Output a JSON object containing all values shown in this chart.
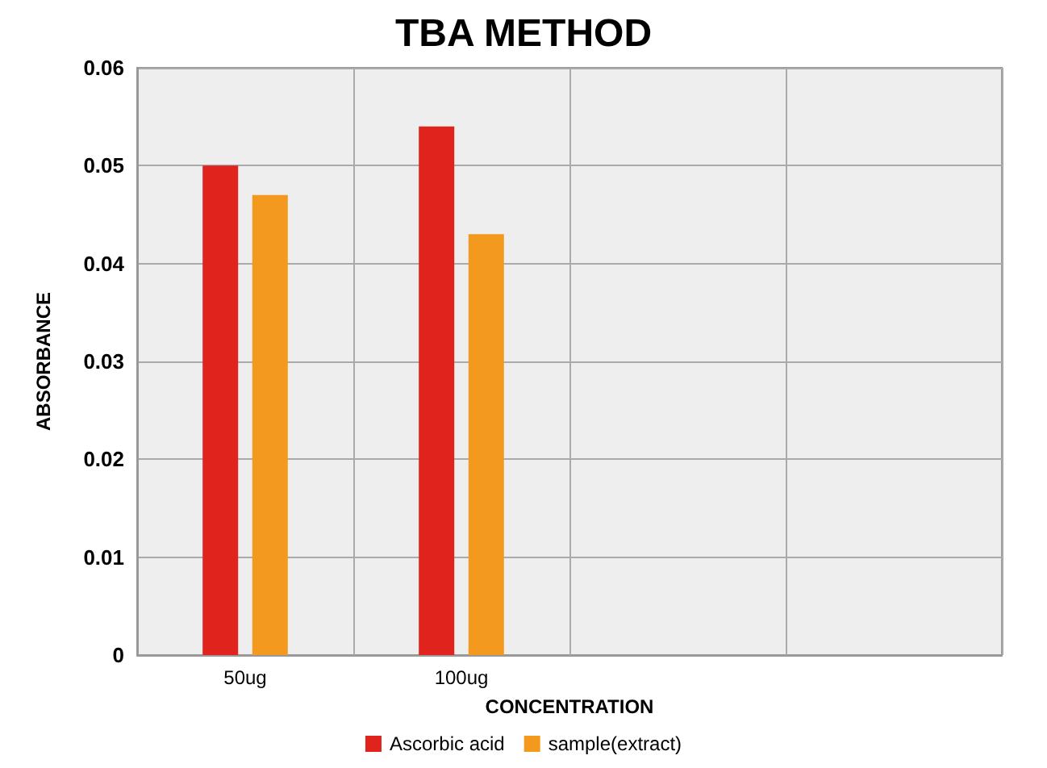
{
  "chart_data": {
    "type": "bar",
    "title": "TBA METHOD",
    "xlabel": "CONCENTRATION",
    "ylabel": "ABSORBANCE",
    "categories": [
      "50ug",
      "100ug",
      null,
      null
    ],
    "series": [
      {
        "name": "Ascorbic acid",
        "color": "#e0231c",
        "values": [
          0.05,
          0.054,
          null,
          null
        ]
      },
      {
        "name": "sample(extract)",
        "color": "#f39a1e",
        "values": [
          0.047,
          0.043,
          null,
          null
        ]
      }
    ],
    "ylim": [
      0,
      0.06
    ],
    "yticks": [
      {
        "value": 0,
        "label": "0"
      },
      0.01,
      0.02,
      0.03,
      0.04,
      0.05,
      0.06
    ],
    "grid": true,
    "legend": "bottom"
  }
}
